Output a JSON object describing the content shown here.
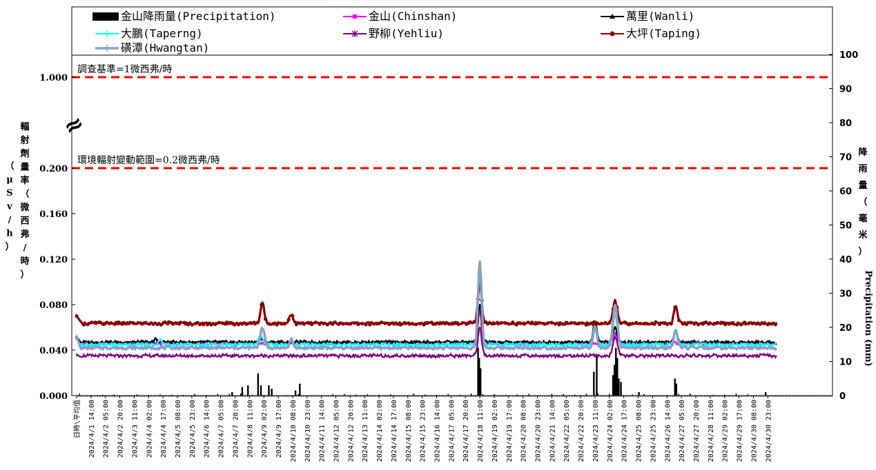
{
  "chart_data": {
    "type": "line",
    "left_axis": {
      "title_chars": [
        "輻",
        "射",
        "劑",
        "量",
        "率",
        "（",
        "微",
        "西",
        "弗",
        "/",
        "時",
        "）"
      ],
      "title_sub_chars": [
        "（",
        "μ",
        "S",
        "v",
        "/",
        "h",
        "）"
      ],
      "tick_labels": [
        "0.000",
        "0.040",
        "0.080",
        "0.120",
        "0.160",
        "0.200",
        "1.000"
      ],
      "break_marker": "≈"
    },
    "right_axis": {
      "title_chars": [
        "降",
        "雨",
        "量",
        "（",
        "毫",
        "米",
        "）"
      ],
      "title_en": "Precipitation (mm)",
      "ticks": [
        0,
        10,
        20,
        30,
        40,
        50,
        60,
        70,
        80,
        90,
        100
      ],
      "ylim": [
        0,
        100
      ]
    },
    "reference_lines": [
      {
        "label": "調查基準=1微西弗/時",
        "value": 1.0,
        "color": "#ff0000"
      },
      {
        "label": "環境輻射變動範圍=0.2微西弗/時",
        "value": 0.2,
        "color": "#ff0000"
      }
    ],
    "x_labels": [
      "日時\\平均值",
      "2024/4/1 14:00",
      "2024/4/2 05:00",
      "2024/4/2 20:00",
      "2024/4/3 11:00",
      "2024/4/4 02:00",
      "2024/4/4 17:00",
      "2024/4/5 08:00",
      "2024/4/5 23:00",
      "2024/4/6 14:00",
      "2024/4/7 05:00",
      "2024/4/7 20:00",
      "2024/4/8 11:00",
      "2024/4/9 02:00",
      "2024/4/9 17:00",
      "2024/4/10 08:00",
      "2024/4/10 23:00",
      "2024/4/11 14:00",
      "2024/4/12 05:00",
      "2024/4/12 20:00",
      "2024/4/13 11:00",
      "2024/4/14 02:00",
      "2024/4/14 17:00",
      "2024/4/15 08:00",
      "2024/4/15 23:00",
      "2024/4/16 14:00",
      "2024/4/17 05:00",
      "2024/4/17 20:00",
      "2024/4/18 11:00",
      "2024/4/19 02:00",
      "2024/4/19 17:00",
      "2024/4/20 08:00",
      "2024/4/20 23:00",
      "2024/4/21 14:00",
      "2024/4/22 05:00",
      "2024/4/22 20:00",
      "2024/4/23 11:00",
      "2024/4/24 02:00",
      "2024/4/24 17:00",
      "2024/4/25 08:00",
      "2024/4/25 23:00",
      "2024/4/26 14:00",
      "2024/4/27 05:00",
      "2024/4/27 20:00",
      "2024/4/28 11:00",
      "2024/4/29 02:00",
      "2024/4/29 17:00",
      "2024/4/30 08:00",
      "2024/4/30 23:00"
    ],
    "series": [
      {
        "name": "金山降雨量(Precipitation)",
        "axis": "right",
        "kind": "bar",
        "color": "#000000",
        "base": 0,
        "peaks": [
          [
            10.8,
            1
          ],
          [
            11.5,
            2.5
          ],
          [
            11.9,
            3
          ],
          [
            12.6,
            6.5
          ],
          [
            12.8,
            3
          ],
          [
            13.35,
            3
          ],
          [
            13.55,
            2
          ],
          [
            15.2,
            1.5
          ],
          [
            15.5,
            3.5
          ],
          [
            27.88,
            14
          ],
          [
            27.96,
            11
          ],
          [
            28.05,
            8
          ],
          [
            35.92,
            7
          ],
          [
            36.12,
            12
          ],
          [
            37.25,
            6
          ],
          [
            37.35,
            9
          ],
          [
            37.45,
            14
          ],
          [
            37.55,
            11
          ],
          [
            37.65,
            5
          ],
          [
            37.8,
            4
          ],
          [
            39.05,
            1
          ],
          [
            41.55,
            5
          ],
          [
            41.65,
            3.5
          ],
          [
            47.85,
            1
          ]
        ]
      },
      {
        "name": "金山(Chinshan)",
        "axis": "left",
        "kind": "line",
        "color": "#ff00ff",
        "marker": "square",
        "base": 0.046,
        "first": 0.05,
        "peaks": [
          [
            28,
            0.075,
            0.25
          ],
          [
            37.4,
            0.055,
            0.3
          ]
        ]
      },
      {
        "name": "萬里(Wanli)",
        "axis": "left",
        "kind": "line",
        "color": "#000000",
        "marker": "triangle",
        "base": 0.047,
        "first": 0.052,
        "peaks": [
          [
            5.5,
            0.05,
            0.2
          ],
          [
            12.8,
            0.05,
            0.3
          ],
          [
            28,
            0.08,
            0.25
          ],
          [
            36,
            0.065,
            0.25
          ],
          [
            37.4,
            0.06,
            0.3
          ],
          [
            41.6,
            0.056,
            0.25
          ]
        ]
      },
      {
        "name": "大鵬(Taperng)",
        "axis": "left",
        "kind": "line",
        "color": "#00ffff",
        "marker": "cross",
        "base": 0.045,
        "first": 0.05,
        "peaks": [
          [
            5.8,
            0.05,
            0.2
          ],
          [
            12.8,
            0.053,
            0.3
          ],
          [
            14.9,
            0.048,
            0.2
          ],
          [
            28,
            0.1,
            0.25
          ],
          [
            36,
            0.062,
            0.25
          ],
          [
            37.4,
            0.07,
            0.3
          ],
          [
            41.6,
            0.058,
            0.25
          ]
        ]
      },
      {
        "name": "野柳(Yehliu)",
        "axis": "left",
        "kind": "line",
        "color": "#800080",
        "marker": "asterisk",
        "base": 0.035,
        "first": 0.036,
        "peaks": [
          [
            28,
            0.06,
            0.25
          ],
          [
            37.4,
            0.052,
            0.3
          ]
        ]
      },
      {
        "name": "大坪(Taping)",
        "axis": "left",
        "kind": "line",
        "color": "#8b0000",
        "marker": "circle",
        "base": 0.0635,
        "first": 0.07,
        "peaks": [
          [
            12.9,
            0.082,
            0.25
          ],
          [
            14.9,
            0.072,
            0.25
          ],
          [
            28,
            0.1,
            0.25
          ],
          [
            37.4,
            0.083,
            0.3
          ],
          [
            41.6,
            0.078,
            0.25
          ]
        ]
      },
      {
        "name": "磺潭(Hwangtan)",
        "axis": "left",
        "kind": "line",
        "color": "#8aa2c8",
        "marker": "plus",
        "base": 0.042,
        "first": 0.052,
        "peaks": [
          [
            12.9,
            0.06,
            0.3
          ],
          [
            14.9,
            0.05,
            0.2
          ],
          [
            28,
            0.117,
            0.25
          ],
          [
            36,
            0.06,
            0.25
          ],
          [
            37.4,
            0.08,
            0.3
          ],
          [
            41.6,
            0.058,
            0.25
          ]
        ]
      }
    ]
  }
}
